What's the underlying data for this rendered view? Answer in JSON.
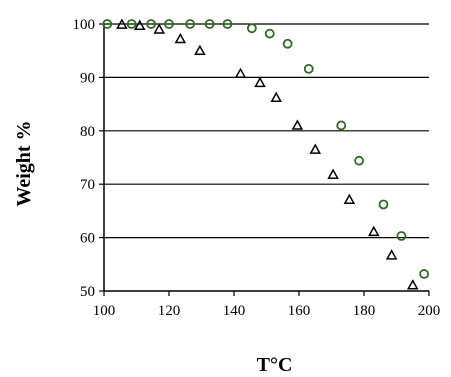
{
  "chart_data": {
    "type": "scatter",
    "title": "",
    "xlabel": "T°C",
    "ylabel": "Weight %",
    "xlim": [
      100,
      200
    ],
    "ylim": [
      50,
      100
    ],
    "xticks": [
      100,
      120,
      140,
      160,
      180,
      200
    ],
    "yticks": [
      50,
      60,
      70,
      80,
      90,
      100
    ],
    "xtick_labels": [
      "100",
      "120",
      "140",
      "160",
      "180",
      "200"
    ],
    "ytick_labels": [
      "50",
      "60",
      "70",
      "80",
      "90",
      "100"
    ],
    "grid": "horizontal",
    "legend": "none",
    "series": [
      {
        "marker": "circle",
        "color": "#2e6b1f",
        "points": [
          [
            101,
            100
          ],
          [
            108.5,
            100
          ],
          [
            114.5,
            100
          ],
          [
            120,
            100
          ],
          [
            126.5,
            100
          ],
          [
            132.5,
            100
          ],
          [
            138,
            100
          ],
          [
            145.5,
            99.2
          ],
          [
            151,
            98.2
          ],
          [
            156.5,
            96.3
          ],
          [
            163,
            91.6
          ],
          [
            173,
            81
          ],
          [
            178.5,
            74.4
          ],
          [
            186,
            66.2
          ],
          [
            191.5,
            60.3
          ],
          [
            198.5,
            53.2
          ]
        ]
      },
      {
        "marker": "triangle",
        "color": "#000000",
        "points": [
          [
            105.5,
            99.9
          ],
          [
            111,
            99.7
          ],
          [
            117,
            99
          ],
          [
            123.5,
            97.2
          ],
          [
            129.5,
            95
          ],
          [
            142,
            90.7
          ],
          [
            148,
            89
          ],
          [
            153,
            86.2
          ],
          [
            159.5,
            81
          ],
          [
            165,
            76.5
          ],
          [
            170.5,
            71.8
          ],
          [
            175.5,
            67.1
          ],
          [
            183,
            61.1
          ],
          [
            188.5,
            56.7
          ],
          [
            195,
            51.1
          ]
        ]
      }
    ]
  }
}
